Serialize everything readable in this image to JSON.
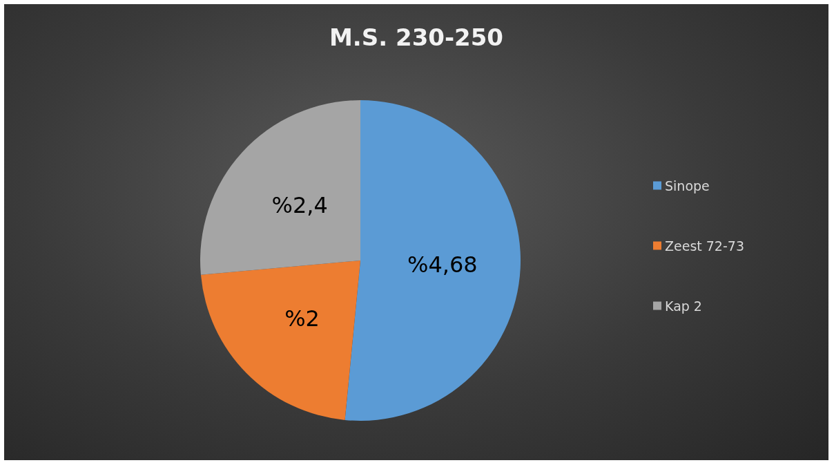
{
  "chart_data": {
    "type": "pie",
    "title": "M.S. 230-250",
    "categories": [
      "Sinope",
      "Zeest 72-73",
      "Kap 2"
    ],
    "values": [
      4.68,
      2,
      2.4
    ],
    "value_labels": [
      "%4,68",
      "%2",
      "%2,4"
    ],
    "colors": [
      "#5b9bd5",
      "#ed7d31",
      "#a5a5a5"
    ],
    "legend": "right"
  }
}
